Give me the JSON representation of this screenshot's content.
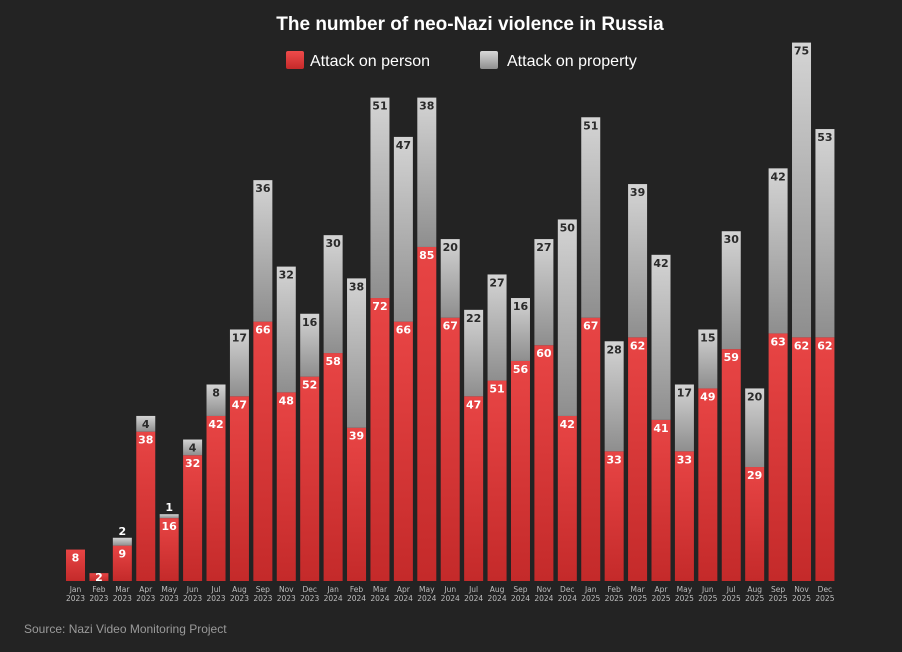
{
  "chart_data": {
    "type": "bar",
    "stacked": true,
    "title": "The number of neo-Nazi violence in Russia",
    "source": "Source: Nazi Video Monitoring Project",
    "legend": {
      "placement": "top-center"
    },
    "categories": [
      {
        "month": "Jan",
        "year": "2023"
      },
      {
        "month": "Feb",
        "year": "2023"
      },
      {
        "month": "Mar",
        "year": "2023"
      },
      {
        "month": "Apr",
        "year": "2023"
      },
      {
        "month": "May",
        "year": "2023"
      },
      {
        "month": "Jun",
        "year": "2023"
      },
      {
        "month": "Jul",
        "year": "2023"
      },
      {
        "month": "Aug",
        "year": "2023"
      },
      {
        "month": "Sep",
        "year": "2023"
      },
      {
        "month": "Nov",
        "year": "2023"
      },
      {
        "month": "Dec",
        "year": "2023"
      },
      {
        "month": "Jan",
        "year": "2024"
      },
      {
        "month": "Feb",
        "year": "2024"
      },
      {
        "month": "Mar",
        "year": "2024"
      },
      {
        "month": "Apr",
        "year": "2024"
      },
      {
        "month": "May",
        "year": "2024"
      },
      {
        "month": "Jun",
        "year": "2024"
      },
      {
        "month": "Jul",
        "year": "2024"
      },
      {
        "month": "Aug",
        "year": "2024"
      },
      {
        "month": "Sep",
        "year": "2024"
      },
      {
        "month": "Nov",
        "year": "2024"
      },
      {
        "month": "Dec",
        "year": "2024"
      },
      {
        "month": "Jan",
        "year": "2025"
      },
      {
        "month": "Feb",
        "year": "2025"
      },
      {
        "month": "Mar",
        "year": "2025"
      },
      {
        "month": "Apr",
        "year": "2025"
      },
      {
        "month": "May",
        "year": "2025"
      },
      {
        "month": "Jun",
        "year": "2025"
      },
      {
        "month": "Jul",
        "year": "2025"
      },
      {
        "month": "Aug",
        "year": "2025"
      },
      {
        "month": "Sep",
        "year": "2025"
      },
      {
        "month": "Nov",
        "year": "2025"
      },
      {
        "month": "Dec",
        "year": "2025"
      }
    ],
    "series": [
      {
        "name": "Attack on person",
        "color": "#e23b3b",
        "values": [
          8,
          2,
          9,
          38,
          16,
          32,
          42,
          47,
          66,
          48,
          52,
          58,
          39,
          72,
          66,
          85,
          67,
          47,
          51,
          56,
          60,
          42,
          67,
          33,
          62,
          41,
          33,
          49,
          59,
          29,
          63,
          62,
          62
        ]
      },
      {
        "name": "Attack on property",
        "color": "#b5b5b5",
        "values": [
          0,
          0,
          2,
          4,
          1,
          4,
          8,
          17,
          36,
          32,
          16,
          30,
          38,
          51,
          47,
          38,
          20,
          22,
          27,
          16,
          27,
          50,
          51,
          28,
          39,
          42,
          17,
          15,
          30,
          20,
          42,
          75,
          53
        ]
      }
    ],
    "ylim": [
      0,
      140
    ]
  }
}
